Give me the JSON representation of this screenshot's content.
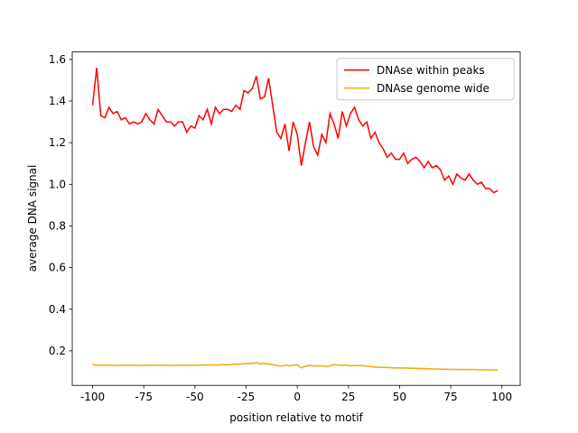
{
  "chart_data": {
    "type": "line",
    "xlabel": "position relative to motif",
    "ylabel": "average DNA signal",
    "x": [
      -100,
      -98,
      -96,
      -94,
      -92,
      -90,
      -88,
      -86,
      -84,
      -82,
      -80,
      -78,
      -76,
      -74,
      -72,
      -70,
      -68,
      -66,
      -64,
      -62,
      -60,
      -58,
      -56,
      -54,
      -52,
      -50,
      -48,
      -46,
      -44,
      -42,
      -40,
      -38,
      -36,
      -34,
      -32,
      -30,
      -28,
      -26,
      -24,
      -22,
      -20,
      -18,
      -16,
      -14,
      -12,
      -10,
      -8,
      -6,
      -4,
      -2,
      0,
      2,
      4,
      6,
      8,
      10,
      12,
      14,
      16,
      18,
      20,
      22,
      24,
      26,
      28,
      30,
      32,
      34,
      36,
      38,
      40,
      42,
      44,
      46,
      48,
      50,
      52,
      54,
      56,
      58,
      60,
      62,
      64,
      66,
      68,
      70,
      72,
      74,
      76,
      78,
      80,
      82,
      84,
      86,
      88,
      90,
      92,
      94,
      96,
      98
    ],
    "series": [
      {
        "name": "DNAse within peaks",
        "color": "#ff0000",
        "values": [
          1.38,
          1.56,
          1.33,
          1.32,
          1.37,
          1.34,
          1.35,
          1.31,
          1.32,
          1.29,
          1.3,
          1.29,
          1.3,
          1.34,
          1.31,
          1.29,
          1.36,
          1.33,
          1.3,
          1.3,
          1.28,
          1.3,
          1.3,
          1.25,
          1.28,
          1.27,
          1.33,
          1.31,
          1.36,
          1.29,
          1.37,
          1.34,
          1.36,
          1.36,
          1.35,
          1.38,
          1.36,
          1.45,
          1.44,
          1.46,
          1.52,
          1.41,
          1.42,
          1.51,
          1.38,
          1.25,
          1.22,
          1.29,
          1.16,
          1.3,
          1.24,
          1.09,
          1.2,
          1.3,
          1.18,
          1.14,
          1.24,
          1.2,
          1.34,
          1.29,
          1.22,
          1.35,
          1.28,
          1.34,
          1.37,
          1.31,
          1.28,
          1.3,
          1.22,
          1.25,
          1.2,
          1.17,
          1.13,
          1.15,
          1.12,
          1.12,
          1.15,
          1.1,
          1.12,
          1.13,
          1.11,
          1.08,
          1.11,
          1.08,
          1.09,
          1.07,
          1.02,
          1.04,
          1.0,
          1.05,
          1.03,
          1.02,
          1.05,
          1.02,
          1.0,
          1.01,
          0.98,
          0.98,
          0.96,
          0.97
        ]
      },
      {
        "name": "DNAse genome wide",
        "color": "#ffa500",
        "values": [
          0.135,
          0.13,
          0.132,
          0.131,
          0.132,
          0.13,
          0.129,
          0.13,
          0.131,
          0.13,
          0.13,
          0.129,
          0.13,
          0.131,
          0.13,
          0.131,
          0.131,
          0.13,
          0.13,
          0.129,
          0.13,
          0.13,
          0.131,
          0.13,
          0.13,
          0.131,
          0.131,
          0.132,
          0.132,
          0.133,
          0.132,
          0.133,
          0.134,
          0.133,
          0.135,
          0.136,
          0.137,
          0.138,
          0.14,
          0.139,
          0.142,
          0.138,
          0.14,
          0.136,
          0.134,
          0.13,
          0.126,
          0.132,
          0.128,
          0.13,
          0.133,
          0.118,
          0.126,
          0.13,
          0.128,
          0.127,
          0.128,
          0.125,
          0.128,
          0.134,
          0.132,
          0.13,
          0.132,
          0.128,
          0.13,
          0.128,
          0.129,
          0.126,
          0.124,
          0.122,
          0.121,
          0.12,
          0.12,
          0.119,
          0.118,
          0.118,
          0.117,
          0.117,
          0.116,
          0.116,
          0.115,
          0.115,
          0.114,
          0.113,
          0.113,
          0.112,
          0.112,
          0.111,
          0.111,
          0.111,
          0.11,
          0.11,
          0.11,
          0.11,
          0.109,
          0.109,
          0.109,
          0.108,
          0.108,
          0.108
        ]
      }
    ],
    "xlim": [
      -109.95,
      108.95
    ],
    "ylim": [
      0.034,
      1.636
    ],
    "xticks": [
      -100,
      -75,
      -50,
      -25,
      0,
      25,
      50,
      75,
      100
    ],
    "yticks": [
      0.2,
      0.4,
      0.6,
      0.8,
      {
        "value": 1.0,
        "label": "1.0"
      },
      1.2,
      1.4,
      1.6
    ],
    "legend": "upper right",
    "grid": false
  }
}
